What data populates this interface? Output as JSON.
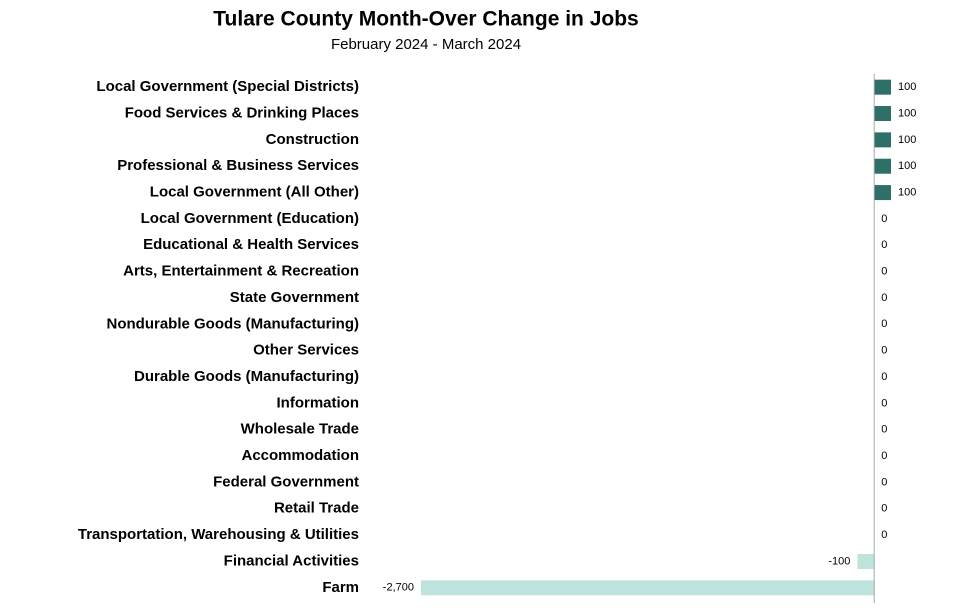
{
  "chart_data": {
    "type": "bar",
    "orientation": "horizontal",
    "title": "Tulare County Month-Over Change in Jobs",
    "subtitle": "February 2024 - March 2024",
    "categories": [
      "Local Government (Special Districts)",
      "Food Services & Drinking Places",
      "Construction",
      "Professional & Business Services",
      "Local Government (All Other)",
      "Local Government (Education)",
      "Educational & Health Services",
      "Arts, Entertainment & Recreation",
      "State Government",
      "Nondurable Goods (Manufacturing)",
      "Other Services",
      "Durable Goods (Manufacturing)",
      "Information",
      "Wholesale Trade",
      "Accommodation",
      "Federal Government",
      "Retail Trade",
      "Transportation, Warehousing & Utilities",
      "Financial Activities",
      "Farm"
    ],
    "values": [
      100,
      100,
      100,
      100,
      100,
      0,
      0,
      0,
      0,
      0,
      0,
      0,
      0,
      0,
      0,
      0,
      0,
      0,
      -100,
      -2700
    ],
    "value_labels": [
      "100",
      "100",
      "100",
      "100",
      "100",
      "0",
      "0",
      "0",
      "0",
      "0",
      "0",
      "0",
      "0",
      "0",
      "0",
      "0",
      "0",
      "0",
      "-100",
      "-2,700"
    ],
    "positive_color": "#2e7068",
    "negative_color": "#bde3dc",
    "xlim": [
      -2700,
      100
    ]
  }
}
